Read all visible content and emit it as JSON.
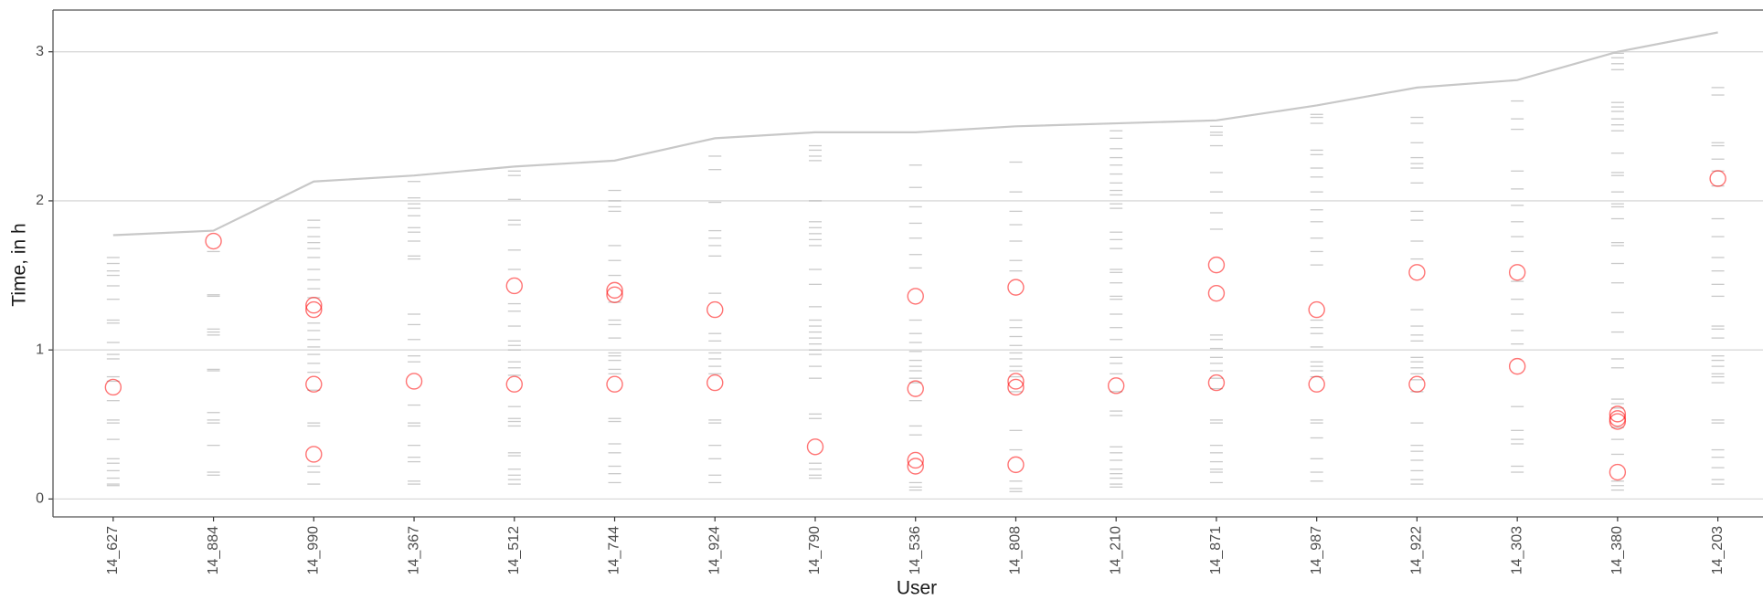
{
  "chart_data": {
    "type": "strip",
    "x_label": "User",
    "y_label": "Time, in h",
    "categories": [
      "14_627",
      "14_884",
      "14_990",
      "14_367",
      "14_512",
      "14_744",
      "14_924",
      "14_790",
      "14_536",
      "14_808",
      "14_210",
      "14_871",
      "14_987",
      "14_922",
      "14_303",
      "14_380",
      "14_203"
    ],
    "ylim": [
      -0.12,
      3.28
    ],
    "yticks": [
      0,
      1,
      2,
      3
    ],
    "grid": true,
    "series": [
      {
        "marker": "dash",
        "color": "#b3b3b3",
        "values": [
          [
            1.62,
            1.58,
            1.53,
            1.5,
            1.43,
            1.34,
            1.2,
            1.18,
            1.05,
            0.97,
            0.94,
            0.82,
            0.79,
            0.66,
            0.53,
            0.51,
            0.4,
            0.27,
            0.24,
            0.19,
            0.14,
            0.1,
            0.09
          ],
          [
            1.66,
            1.37,
            1.36,
            1.14,
            1.12,
            1.1,
            0.87,
            0.86,
            0.58,
            0.53,
            0.51,
            0.36,
            0.18,
            0.16
          ],
          [
            1.87,
            1.82,
            1.76,
            1.72,
            1.68,
            1.62,
            1.54,
            1.47,
            1.41,
            1.35,
            1.18,
            1.13,
            1.07,
            1.02,
            0.97,
            0.91,
            0.85,
            0.73,
            0.51,
            0.49,
            0.22,
            0.18,
            0.1
          ],
          [
            2.13,
            2.02,
            1.98,
            1.95,
            1.9,
            1.82,
            1.79,
            1.73,
            1.63,
            1.61,
            1.24,
            1.17,
            1.07,
            0.96,
            0.92,
            0.63,
            0.51,
            0.49,
            0.36,
            0.28,
            0.25,
            0.12,
            0.1
          ],
          [
            2.2,
            2.17,
            2.01,
            1.87,
            1.84,
            1.67,
            1.54,
            1.31,
            1.26,
            1.16,
            1.06,
            1.03,
            1.0,
            0.92,
            0.88,
            0.83,
            0.62,
            0.54,
            0.52,
            0.49,
            0.31,
            0.29,
            0.2,
            0.16,
            0.13,
            0.1
          ],
          [
            2.07,
            2.0,
            1.96,
            1.93,
            1.7,
            1.6,
            1.5,
            1.32,
            1.2,
            1.17,
            1.08,
            0.98,
            0.96,
            0.93,
            0.87,
            0.84,
            0.54,
            0.52,
            0.37,
            0.31,
            0.22,
            0.17,
            0.11
          ],
          [
            2.3,
            2.21,
            1.99,
            1.8,
            1.75,
            1.7,
            1.63,
            1.38,
            1.11,
            1.06,
            0.98,
            0.94,
            0.89,
            0.84,
            0.53,
            0.51,
            0.36,
            0.27,
            0.16,
            0.11
          ],
          [
            2.37,
            2.34,
            2.3,
            2.27,
            2.0,
            1.86,
            1.82,
            1.78,
            1.74,
            1.7,
            1.54,
            1.44,
            1.29,
            1.2,
            1.16,
            1.12,
            1.08,
            1.04,
            1.0,
            0.97,
            0.89,
            0.81,
            0.57,
            0.54,
            0.24,
            0.2,
            0.16,
            0.14
          ],
          [
            2.24,
            2.09,
            1.96,
            1.85,
            1.75,
            1.64,
            1.55,
            1.2,
            1.11,
            1.05,
            0.99,
            0.93,
            0.89,
            0.86,
            0.81,
            0.78,
            0.66,
            0.49,
            0.43,
            0.11,
            0.08,
            0.06
          ],
          [
            2.26,
            2.06,
            1.93,
            1.84,
            1.73,
            1.6,
            1.53,
            1.2,
            1.15,
            1.09,
            1.03,
            0.98,
            0.94,
            0.89,
            0.86,
            0.82,
            0.72,
            0.46,
            0.33,
            0.12,
            0.07,
            0.05
          ],
          [
            2.52,
            2.47,
            2.42,
            2.35,
            2.29,
            2.24,
            2.18,
            2.12,
            2.07,
            2.04,
            1.98,
            1.95,
            1.79,
            1.74,
            1.68,
            1.54,
            1.52,
            1.45,
            1.36,
            1.34,
            1.24,
            1.15,
            1.07,
            0.95,
            0.91,
            0.84,
            0.72,
            0.59,
            0.56,
            0.35,
            0.31,
            0.26,
            0.2,
            0.17,
            0.14,
            0.1,
            0.08
          ],
          [
            2.5,
            2.46,
            2.44,
            2.37,
            2.19,
            2.06,
            1.92,
            1.81,
            1.1,
            1.07,
            1.01,
            0.95,
            0.91,
            0.86,
            0.81,
            0.74,
            0.53,
            0.51,
            0.36,
            0.31,
            0.25,
            0.2,
            0.18,
            0.11
          ],
          [
            2.58,
            2.56,
            2.52,
            2.34,
            2.31,
            2.22,
            2.16,
            2.06,
            1.94,
            1.86,
            1.75,
            1.66,
            1.57,
            1.2,
            1.15,
            1.11,
            1.02,
            0.92,
            0.89,
            0.86,
            0.82,
            0.53,
            0.51,
            0.41,
            0.27,
            0.18,
            0.12
          ],
          [
            2.56,
            2.52,
            2.39,
            2.29,
            2.25,
            2.22,
            2.12,
            1.93,
            1.87,
            1.73,
            1.61,
            1.27,
            1.16,
            1.1,
            1.06,
            0.95,
            0.92,
            0.88,
            0.84,
            0.8,
            0.72,
            0.51,
            0.36,
            0.32,
            0.26,
            0.19,
            0.13,
            0.1
          ],
          [
            2.67,
            2.55,
            2.48,
            2.2,
            2.08,
            1.97,
            1.86,
            1.76,
            1.66,
            1.46,
            1.34,
            1.24,
            1.13,
            1.04,
            0.62,
            0.46,
            0.4,
            0.37,
            0.22,
            0.18
          ],
          [
            2.99,
            2.96,
            2.92,
            2.88,
            2.66,
            2.63,
            2.6,
            2.55,
            2.51,
            2.47,
            2.32,
            2.19,
            2.17,
            2.06,
            1.98,
            1.96,
            1.88,
            1.72,
            1.7,
            1.58,
            1.45,
            1.25,
            1.12,
            0.94,
            0.88,
            0.67,
            0.64,
            0.61,
            0.48,
            0.4,
            0.3,
            0.12,
            0.09,
            0.06
          ],
          [
            2.76,
            2.71,
            2.39,
            2.37,
            2.28,
            2.2,
            2.1,
            1.88,
            1.76,
            1.62,
            1.53,
            1.44,
            1.36,
            1.16,
            1.14,
            1.08,
            0.96,
            0.93,
            0.89,
            0.84,
            0.82,
            0.78,
            0.53,
            0.51,
            0.33,
            0.28,
            0.21,
            0.13,
            0.1
          ]
        ]
      },
      {
        "marker": "circle",
        "color": "#ff0000",
        "values": [
          [
            0.75
          ],
          [
            1.73
          ],
          [
            1.3,
            1.27,
            0.77,
            0.3
          ],
          [
            0.79
          ],
          [
            1.43,
            0.77
          ],
          [
            1.4,
            1.37,
            0.77
          ],
          [
            1.27,
            0.78
          ],
          [
            0.35
          ],
          [
            1.36,
            0.74,
            0.26,
            0.22
          ],
          [
            1.42,
            0.79,
            0.75,
            0.23
          ],
          [
            0.76
          ],
          [
            1.57,
            1.38,
            0.78
          ],
          [
            1.27,
            0.77
          ],
          [
            1.52,
            0.77
          ],
          [
            1.52,
            0.89
          ],
          [
            0.57,
            0.54,
            0.52,
            0.18
          ],
          [
            2.15
          ]
        ]
      },
      {
        "marker": "line",
        "color": "#c8c8c8",
        "values": [
          1.77,
          1.8,
          2.13,
          2.17,
          2.23,
          2.27,
          2.42,
          2.46,
          2.46,
          2.5,
          2.52,
          2.54,
          2.64,
          2.76,
          2.81,
          3.0,
          3.13
        ]
      }
    ]
  }
}
